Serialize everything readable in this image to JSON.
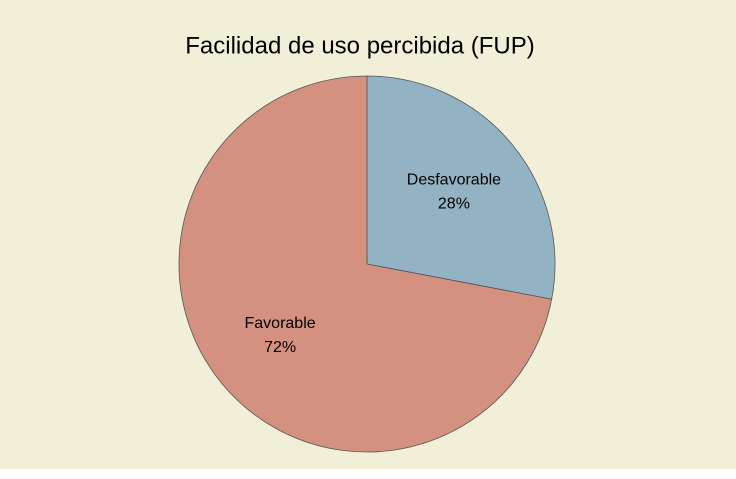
{
  "chart_data": {
    "type": "pie",
    "title": "Facilidad de uso percibida (FUP)",
    "categories": [
      "Desfavorable",
      "Favorable"
    ],
    "values": [
      28,
      72
    ],
    "value_labels": [
      "28%",
      "72%"
    ],
    "colors": [
      "#93b3c4",
      "#d4917f"
    ]
  }
}
